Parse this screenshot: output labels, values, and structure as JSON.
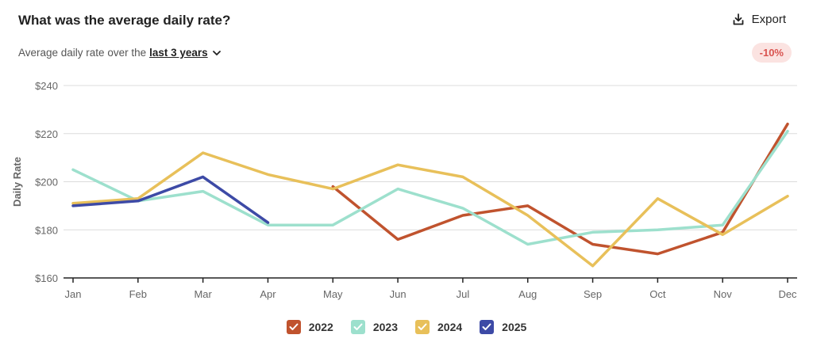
{
  "header": {
    "title": "What was the average daily rate?",
    "export_label": "Export",
    "subtitle_prefix": "Average daily rate over the",
    "range_label": "last 3 years",
    "change_badge": "-10%",
    "change_color": "#d9534f"
  },
  "chart_data": {
    "type": "line",
    "ylabel": "Daily Rate",
    "xlabel": "",
    "ylim": [
      160,
      240
    ],
    "yticks": [
      160,
      180,
      200,
      220,
      240
    ],
    "ytick_labels": [
      "$160",
      "$180",
      "$200",
      "$220",
      "$240"
    ],
    "categories": [
      "Jan",
      "Feb",
      "Mar",
      "Apr",
      "May",
      "Jun",
      "Jul",
      "Aug",
      "Sep",
      "Oct",
      "Nov",
      "Dec"
    ],
    "grid": true,
    "legend_position": "bottom",
    "series": [
      {
        "name": "2022",
        "color": "#c0532e",
        "values": [
          null,
          null,
          null,
          null,
          198,
          176,
          186,
          190,
          174,
          170,
          179,
          224
        ]
      },
      {
        "name": "2023",
        "color": "#9de0cd",
        "values": [
          205,
          192,
          196,
          182,
          182,
          197,
          189,
          174,
          179,
          180,
          182,
          221
        ]
      },
      {
        "name": "2024",
        "color": "#e8c05a",
        "values": [
          191,
          193,
          212,
          203,
          197,
          207,
          202,
          186,
          165,
          193,
          178,
          194
        ]
      },
      {
        "name": "2025",
        "color": "#3d4aa6",
        "values": [
          190,
          192,
          202,
          183,
          null,
          null,
          null,
          null,
          null,
          null,
          null,
          null
        ]
      }
    ]
  }
}
